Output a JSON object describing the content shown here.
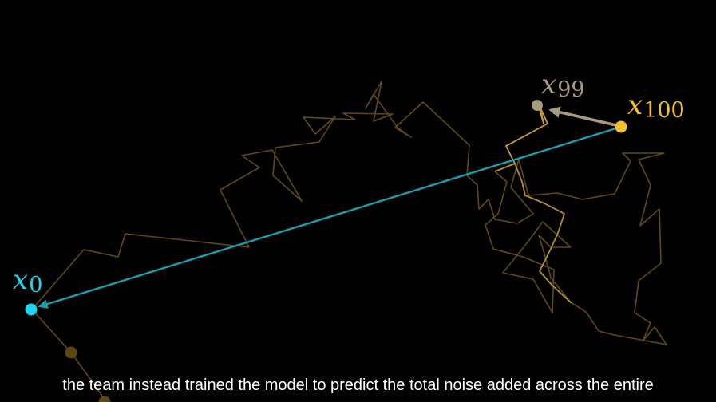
{
  "labels": {
    "x0": {
      "base": "x",
      "sub": "0"
    },
    "x99": {
      "base": "x",
      "sub": "99"
    },
    "x100": {
      "base": "x",
      "sub": "100"
    }
  },
  "caption": "the team instead trained the model to predict the total noise added across the entire",
  "colors": {
    "background": "#000000",
    "start_point": "#1cd6f0",
    "total_noise_arrow": "#1a9fb0",
    "end_point": "#f5c02e",
    "step_arrow": "#a89a7e",
    "walk_path": "#6e561c",
    "walk_path_recent": "#c8a030",
    "caption_text": "#ffffff"
  }
}
